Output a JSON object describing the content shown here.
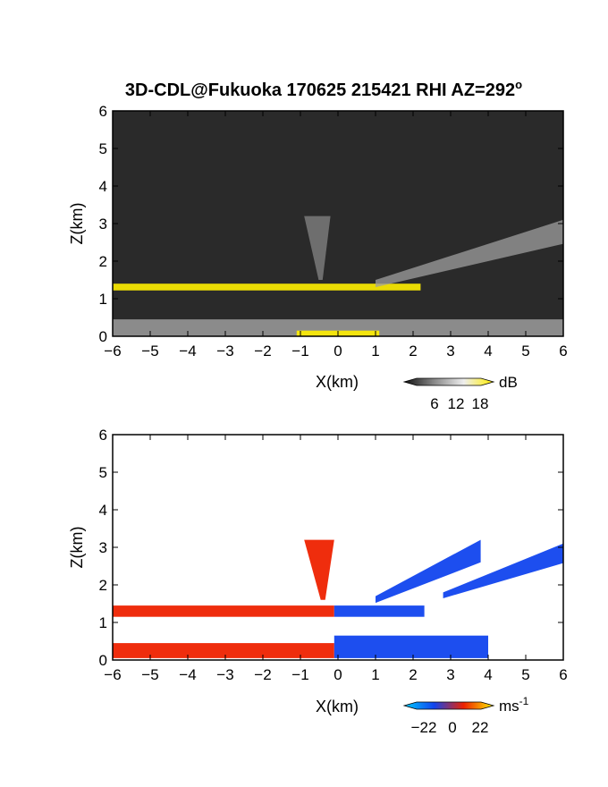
{
  "title": "3D-CDL@Fukuoka 170625 215421 RHI AZ=292",
  "title_superscript": "o",
  "chart_data": [
    {
      "type": "heatmap",
      "panel": "reflectivity",
      "xlabel": "X(km)",
      "ylabel": "Z(km)",
      "xlim": [
        -6,
        6
      ],
      "ylim": [
        0,
        6
      ],
      "x_ticks": [
        "-6",
        "-5",
        "-4",
        "-3",
        "-2",
        "-1",
        "0",
        "1",
        "2",
        "3",
        "4",
        "5",
        "6"
      ],
      "y_ticks": [
        "0",
        "1",
        "2",
        "3",
        "4",
        "5",
        "6"
      ],
      "colorbar": {
        "unit": "dB",
        "ticks": [
          "6",
          "12",
          "18"
        ],
        "range": [
          0,
          21
        ]
      },
      "features": [
        {
          "kind": "layer",
          "x": [
            -6,
            2.2
          ],
          "z": [
            1.22,
            1.4
          ],
          "value": 20
        },
        {
          "kind": "plume",
          "x": [
            -0.9,
            -0.2
          ],
          "z": [
            1.5,
            3.2
          ],
          "value": 10
        },
        {
          "kind": "sloped-layer",
          "x": [
            1.0,
            6.0
          ],
          "z": [
            1.5,
            3.1
          ],
          "value": 12
        },
        {
          "kind": "ground-clutter",
          "x": [
            -6,
            6
          ],
          "z": [
            0,
            0.45
          ],
          "value": 11
        },
        {
          "kind": "near-ground",
          "x": [
            -1.1,
            1.1
          ],
          "z": [
            0,
            0.15
          ],
          "value": 20
        }
      ]
    },
    {
      "type": "heatmap",
      "panel": "doppler-velocity",
      "xlabel": "X(km)",
      "ylabel": "Z(km)",
      "xlim": [
        -6,
        6
      ],
      "ylim": [
        0,
        6
      ],
      "x_ticks": [
        "-6",
        "-5",
        "-4",
        "-3",
        "-2",
        "-1",
        "0",
        "1",
        "2",
        "3",
        "4",
        "5",
        "6"
      ],
      "y_ticks": [
        "0",
        "1",
        "2",
        "3",
        "4",
        "5",
        "6"
      ],
      "colorbar": {
        "unit": "ms",
        "unit_exponent": "-1",
        "ticks": [
          "−22",
          "0",
          "22"
        ],
        "range": [
          -22,
          22
        ]
      },
      "features": [
        {
          "kind": "layer",
          "x": [
            -6,
            -0.1
          ],
          "z": [
            1.15,
            1.45
          ],
          "value": 12
        },
        {
          "kind": "layer",
          "x": [
            -0.1,
            2.3
          ],
          "z": [
            1.15,
            1.45
          ],
          "value": -12
        },
        {
          "kind": "plume",
          "x": [
            -0.9,
            -0.1
          ],
          "z": [
            1.6,
            3.2
          ],
          "value": 12
        },
        {
          "kind": "sloped-layer",
          "x": [
            1.0,
            3.8
          ],
          "z": [
            1.7,
            3.2
          ],
          "value": -12
        },
        {
          "kind": "sloped-layer",
          "x": [
            2.8,
            6.0
          ],
          "z": [
            1.8,
            3.1
          ],
          "value": -12
        },
        {
          "kind": "low-layer",
          "x": [
            -6,
            -0.1
          ],
          "z": [
            0.05,
            0.45
          ],
          "value": 12
        },
        {
          "kind": "low-layer",
          "x": [
            -0.1,
            4.0
          ],
          "z": [
            0.05,
            0.65
          ],
          "value": -12
        }
      ]
    }
  ]
}
